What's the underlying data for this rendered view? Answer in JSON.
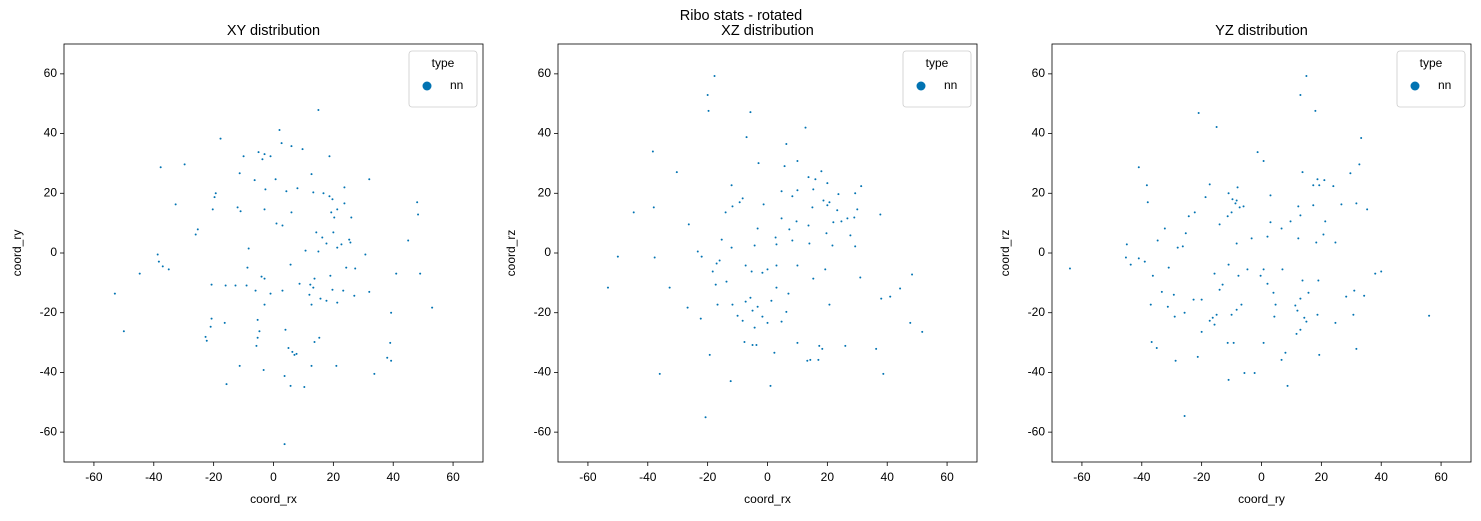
{
  "title": "Ribo stats - rotated",
  "chart_data": [
    {
      "type": "scatter",
      "title": "XY distribution",
      "xlabel": "coord_rx",
      "ylabel": "coord_ry",
      "legend_title": "type",
      "legend": "upper right",
      "xlim": [
        -70,
        70
      ],
      "ylim": [
        -70,
        70
      ],
      "xticks": [
        -60,
        -40,
        -20,
        0,
        20,
        40,
        60
      ],
      "yticks": [
        -60,
        -40,
        -20,
        0,
        20,
        40,
        60
      ],
      "series": [
        {
          "name": "nn",
          "color": "#0173b2",
          "x": [
            15,
            2,
            -17.7,
            -10,
            -5,
            -3,
            -3.7,
            -1,
            2.7,
            6,
            9.7,
            18.7,
            -29.7,
            -37.7,
            -11.3,
            12.7,
            32,
            -6.3,
            0.7,
            -2.7,
            8,
            23.7,
            -19.3,
            -19.7,
            4.3,
            13.3,
            16.7,
            18.7,
            19.7,
            48,
            -32.7,
            23.7,
            21.3,
            -12,
            -20.3,
            -11,
            -3,
            6,
            48.3,
            19.3,
            20.3,
            1,
            3,
            26,
            -25.3,
            -26,
            14.3,
            20,
            16.3,
            25.3,
            45,
            17.7,
            22.7,
            25.7,
            21.3,
            -8.3,
            10.7,
            15,
            30.7,
            -38.7,
            -38.3,
            -37,
            -35,
            -44.7,
            41,
            49,
            -8.7,
            24.3,
            5.7,
            27.3,
            19,
            -4,
            -3,
            13.7,
            -16,
            -12.7,
            -20.7,
            -9,
            8.7,
            12.3,
            13.3,
            -6,
            3,
            19.7,
            23.3,
            -53,
            -1,
            12,
            27,
            32,
            15.7,
            53,
            17.7,
            21.3,
            -3,
            12.7,
            39.3,
            -20.7,
            -16.3,
            -5.3,
            -50,
            -21,
            -4.7,
            4,
            -22.7,
            -22.3,
            -5.3,
            15.3,
            13.7,
            39,
            -5.7,
            5,
            6.3,
            7,
            7.7,
            38,
            -11.3,
            12.7,
            21,
            39.3,
            -3.3,
            33.7,
            3.7,
            -15.7,
            10.3,
            5.7,
            3.7
          ],
          "y": [
            47.9,
            41.2,
            38.3,
            32.4,
            33.8,
            33.1,
            31.4,
            32.4,
            36.8,
            35.8,
            34.8,
            32.4,
            29.7,
            28.7,
            26.7,
            26.4,
            24.7,
            24.4,
            24.7,
            21.3,
            21.7,
            22,
            20,
            18.7,
            20.7,
            20.3,
            20,
            19,
            18,
            17,
            16.3,
            16.6,
            14.6,
            15.3,
            14.6,
            14,
            14.6,
            13.6,
            12.9,
            13.6,
            11.9,
            9.9,
            9.2,
            11.9,
            7.9,
            6.2,
            6.9,
            6.9,
            5.2,
            4.5,
            4.2,
            3.2,
            2.9,
            3.5,
            1.8,
            1.5,
            0.8,
            0.5,
            -0.5,
            -0.5,
            -2.9,
            -4.5,
            -5.5,
            -6.9,
            -6.9,
            -6.9,
            -4.9,
            -4.9,
            -3.9,
            -5.2,
            -7.6,
            -7.9,
            -8.6,
            -8.6,
            -10.9,
            -10.9,
            -10.6,
            -10.9,
            -10.3,
            -10.6,
            -11.6,
            -12.6,
            -12.6,
            -12.3,
            -12.6,
            -13.6,
            -13.6,
            -14,
            -14.3,
            -13,
            -15.3,
            -18.3,
            -16,
            -16.6,
            -17.3,
            -17.3,
            -20,
            -22,
            -23.4,
            -22.4,
            -26.2,
            -24.7,
            -26.2,
            -25.7,
            -28.1,
            -29.4,
            -28.4,
            -28.4,
            -29.8,
            -30.1,
            -31.1,
            -31.8,
            -33.1,
            -34.1,
            -33.8,
            -35.1,
            -37.8,
            -37.8,
            -37.8,
            -36.1,
            -39.2,
            -40.5,
            -41.2,
            -43.9,
            -44.9,
            -44.5,
            -64
          ]
        }
      ]
    },
    {
      "type": "scatter",
      "title": "XZ distribution",
      "xlabel": "coord_rx",
      "ylabel": "coord_rz",
      "legend_title": "type",
      "legend": "upper right",
      "xlim": [
        -70,
        70
      ],
      "ylim": [
        -70,
        70
      ],
      "xticks": [
        -60,
        -40,
        -20,
        0,
        20,
        40,
        60
      ],
      "yticks": [
        -60,
        -40,
        -20,
        0,
        20,
        40,
        60
      ],
      "series": [
        {
          "name": "nn",
          "color": "#0173b2",
          "x": [
            -17.7,
            -20,
            -19.7,
            -5.7,
            12.7,
            -38.3,
            -7,
            6.3,
            -3,
            10,
            5.7,
            -30.3,
            18,
            13.7,
            16,
            20,
            -12,
            31.3,
            15.3,
            10,
            23.7,
            29.3,
            4.7,
            8.3,
            -8.3,
            -9.3,
            18.7,
            20,
            20.7,
            -1.3,
            -11.7,
            -38,
            15,
            -14,
            -44.7,
            23.3,
            30,
            26.7,
            37.7,
            24.7,
            9.7,
            29,
            -26.3,
            4.7,
            22,
            13.7,
            -3.3,
            7.3,
            19.7,
            27.7,
            2.7,
            3,
            8.3,
            -15.3,
            -23.3,
            -22,
            -37.7,
            -50,
            -12,
            -4.3,
            -16,
            21.7,
            29.3,
            14,
            -17,
            -7.3,
            -5.3,
            3,
            10,
            -18.3,
            -1.7,
            0,
            19.3,
            48.3,
            31,
            15.3,
            -13.7,
            3,
            -32.7,
            -53.3,
            -17.3,
            44.3,
            7,
            41,
            38,
            -5.7,
            -7.3,
            1.3,
            -16.7,
            -11.7,
            -3.3,
            -5,
            -26.7,
            20.7,
            6.3,
            -22.3,
            -1.7,
            -10,
            -8.3,
            4.7,
            0,
            47.7,
            51.7,
            -4.3,
            -7.7,
            -3.7,
            -5,
            10,
            17.3,
            26,
            36.3,
            2.3,
            18.3,
            -19.3,
            13.3,
            14.3,
            17,
            -36,
            -12.3,
            38.7,
            1,
            -20.7
          ],
          "y": [
            59.3,
            52.9,
            47.6,
            47.2,
            42,
            34,
            38.8,
            36.5,
            30.1,
            30.8,
            29.1,
            27.1,
            27.4,
            25.4,
            24.7,
            23.4,
            22.7,
            22.4,
            21.3,
            21,
            19.7,
            20,
            20.7,
            19,
            18.3,
            17,
            17.6,
            16,
            17,
            16.3,
            15.6,
            15.3,
            15.3,
            13.6,
            13.6,
            14.3,
            14.6,
            11.6,
            12.9,
            10.6,
            10.6,
            11.9,
            9.6,
            11.6,
            10.3,
            9.2,
            8.2,
            7.9,
            6.6,
            5.9,
            5.2,
            2.9,
            4.2,
            4.5,
            0.5,
            -1.2,
            -1.5,
            -1.2,
            1.8,
            2.5,
            -2.5,
            2.5,
            2.2,
            3.2,
            -3.5,
            -4.2,
            -6.2,
            -4.2,
            -4.2,
            -6.2,
            -6.6,
            -5.5,
            -5.5,
            -7.2,
            -8.2,
            -8.6,
            -9.6,
            -11.6,
            -11.6,
            -11.6,
            -10.6,
            -11.9,
            -13.6,
            -14.6,
            -15.3,
            -15,
            -16.3,
            -16,
            -17.3,
            -17.3,
            -18,
            -19.3,
            -18.3,
            -17.3,
            -19.7,
            -22,
            -21.3,
            -21,
            -22.7,
            -23,
            -23.4,
            -23.4,
            -26.4,
            -25,
            -29.8,
            -30.8,
            -30.8,
            -30.1,
            -31.1,
            -31.1,
            -32.1,
            -33.4,
            -32.1,
            -34.1,
            -36.1,
            -35.8,
            -35.8,
            -40.5,
            -42.9,
            -40.5,
            -44.5,
            -55
          ]
        }
      ]
    },
    {
      "type": "scatter",
      "title": "YZ distribution",
      "xlabel": "coord_ry",
      "ylabel": "coord_rz",
      "legend_title": "type",
      "legend": "upper right",
      "xlim": [
        -70,
        70
      ],
      "ylim": [
        -70,
        70
      ],
      "xticks": [
        -60,
        -40,
        -20,
        0,
        20,
        40,
        60
      ],
      "yticks": [
        -60,
        -40,
        -20,
        0,
        20,
        40,
        60
      ],
      "series": [
        {
          "name": "nn",
          "color": "#0173b2",
          "x": [
            15,
            13,
            18,
            -21,
            -15,
            33.3,
            -1.3,
            0.7,
            32.7,
            -41,
            29.7,
            13.7,
            18.7,
            19.3,
            -38.3,
            21,
            24,
            -17.3,
            -8,
            17.3,
            -11,
            3,
            -18.7,
            -9.7,
            -8.3,
            -38,
            26.7,
            -6,
            -8.7,
            -7.3,
            12.3,
            31.7,
            17.3,
            35.3,
            -10,
            -22.3,
            -11.3,
            -24.3,
            9.7,
            3,
            13,
            21.3,
            -14,
            -32.3,
            6.7,
            -25.3,
            20.7,
            2,
            -3.3,
            12.3,
            -34.7,
            -45,
            -26.3,
            -8.3,
            18.3,
            24.7,
            -28,
            -64,
            -45.3,
            -41,
            -39,
            -43.7,
            -31,
            -11,
            7,
            -4.7,
            0.7,
            -15.7,
            40,
            38,
            -7.7,
            -0.3,
            -36.3,
            19,
            13.7,
            2,
            -13,
            -33.3,
            4,
            31,
            28.3,
            34.3,
            -14,
            -29.3,
            -22.7,
            -20,
            15.7,
            13,
            -37,
            -6.7,
            4.7,
            11.3,
            -31.3,
            -8.3,
            12,
            -25.7,
            56,
            -10,
            -15,
            -29,
            4.3,
            18.7,
            30.7,
            -16.3,
            14.3,
            -17.3,
            15,
            24.7,
            -15.7,
            13,
            -20,
            11.7,
            -36.7,
            -11.3,
            -9.3,
            -35,
            0.7,
            31.7,
            -21.3,
            19.3,
            8,
            -28.7,
            6.7,
            -5.7,
            -11,
            8.7,
            -25.7,
            -2.3
          ],
          "y": [
            59.3,
            52.9,
            47.6,
            46.9,
            42.2,
            38.5,
            33.8,
            30.8,
            29.7,
            28.7,
            26.7,
            27.1,
            24.7,
            22.7,
            22.7,
            24.4,
            22.4,
            23,
            22,
            22.7,
            20,
            19.3,
            18.7,
            18,
            17.6,
            17,
            16.3,
            15.6,
            16.6,
            15.3,
            15.6,
            16.6,
            16,
            14.6,
            13.6,
            13.6,
            12.3,
            12.3,
            10.6,
            10.3,
            12.6,
            10.6,
            9.6,
            8.2,
            8.2,
            6.6,
            6.2,
            5.5,
            4.9,
            4.9,
            4.2,
            2.9,
            2.2,
            3.2,
            3.5,
            3.5,
            1.8,
            -5.2,
            -1.5,
            -1.8,
            -2.9,
            -3.9,
            -4.9,
            -3.9,
            -5.5,
            -5.5,
            -5.5,
            -6.9,
            -6.2,
            -6.9,
            -7.6,
            -7.6,
            -7.6,
            -9.2,
            -9.2,
            -10.3,
            -10.6,
            -13,
            -13.3,
            -12.6,
            -14.6,
            -14.3,
            -12.3,
            -14,
            -15.6,
            -15.6,
            -13.3,
            -15.3,
            -17.3,
            -17.3,
            -17.3,
            -17.6,
            -18,
            -19,
            -19.3,
            -20,
            -21,
            -20.7,
            -20.7,
            -21.3,
            -21.3,
            -20.7,
            -20.7,
            -21.7,
            -21.7,
            -22.7,
            -23,
            -23.4,
            -24,
            -25.7,
            -26.4,
            -27.1,
            -29.8,
            -30.1,
            -30.1,
            -31.8,
            -30.1,
            -32.1,
            -34.8,
            -34.1,
            -33.4,
            -36.1,
            -35.8,
            -40.2,
            -42.5,
            -44.5,
            -54.6,
            -40.2
          ]
        }
      ]
    }
  ]
}
